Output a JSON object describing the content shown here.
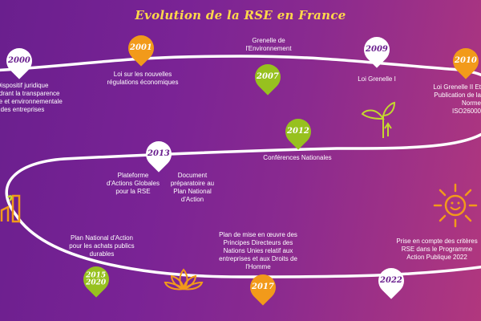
{
  "title": "Evolution de la RSE en France",
  "milestones": [
    {
      "year": "2000",
      "text": "Dispositif juridique encadrant la transparence sociale et environnementale des entreprises"
    },
    {
      "year": "2001",
      "text": "Loi sur les nouvelles régulations économiques"
    },
    {
      "year": "2007",
      "text": "Grenelle de l'Environnement"
    },
    {
      "year": "2009",
      "text": "Loi Grenelle I"
    },
    {
      "year": "2010",
      "text": "Loi Grenelle II Et Publication de la Norme ISO26000"
    },
    {
      "year": "2012",
      "text": "Conférences Nationales"
    },
    {
      "year": "2013",
      "text": "Plateforme d'Actions Globales pour la RSE"
    },
    {
      "year": "2013b",
      "text": "Document préparatoire au Plan National d'Action"
    },
    {
      "year": "2015\n2020",
      "text": "Plan National d'Action pour les achats publics durables"
    },
    {
      "year": "2017",
      "text": "Plan de mise en œuvre des Principes Directeurs des Nations Unies relatif aux entreprises et aux Droits de l'Homme"
    },
    {
      "year": "2022",
      "text": "Prise en compte des critères RSE dans le Programme Action Publique 2022"
    }
  ],
  "colors": {
    "white": "#ffffff",
    "orange": "#f29a1a",
    "green": "#97c11f",
    "title": "#ffd84a"
  },
  "icons": [
    "sprout-icon",
    "sun-icon",
    "lotus-icon",
    "factory-icon"
  ]
}
